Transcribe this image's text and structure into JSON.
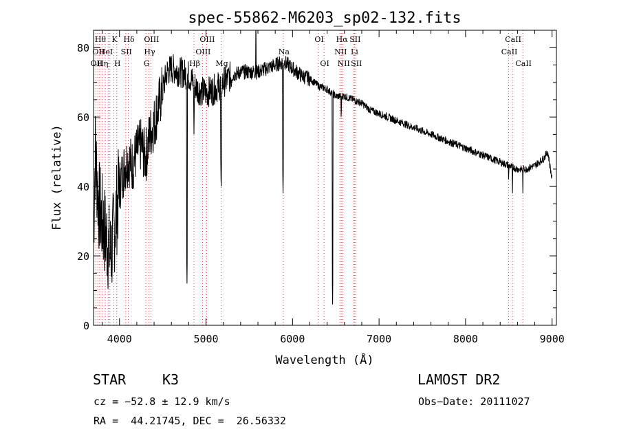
{
  "chart_data": {
    "type": "line",
    "title": "spec-55862-M6203_sp02-132.fits",
    "xlabel": "Wavelength (Å)",
    "ylabel": "Flux (relative)",
    "xlim": [
      3700,
      9050
    ],
    "ylim": [
      0,
      85
    ],
    "x_ticks": [
      4000,
      5000,
      6000,
      7000,
      8000,
      9000
    ],
    "y_ticks": [
      0,
      20,
      40,
      60,
      80
    ],
    "grid": false,
    "line_color": "#000000",
    "marker_color": "#d04040",
    "spectrum_anchors": [
      [
        3700,
        28
      ],
      [
        3720,
        50
      ],
      [
        3760,
        35
      ],
      [
        3800,
        30
      ],
      [
        3850,
        25
      ],
      [
        3900,
        20
      ],
      [
        3950,
        30
      ],
      [
        4000,
        40
      ],
      [
        4050,
        45
      ],
      [
        4100,
        48
      ],
      [
        4150,
        46
      ],
      [
        4200,
        50
      ],
      [
        4250,
        52
      ],
      [
        4300,
        48
      ],
      [
        4350,
        55
      ],
      [
        4400,
        58
      ],
      [
        4450,
        63
      ],
      [
        4500,
        68
      ],
      [
        4550,
        73
      ],
      [
        4600,
        74
      ],
      [
        4700,
        73
      ],
      [
        4800,
        72
      ],
      [
        4900,
        68
      ],
      [
        5000,
        67
      ],
      [
        5100,
        68
      ],
      [
        5200,
        70
      ],
      [
        5300,
        72
      ],
      [
        5400,
        73
      ],
      [
        5500,
        73
      ],
      [
        5600,
        73
      ],
      [
        5700,
        74
      ],
      [
        5800,
        75
      ],
      [
        5900,
        76
      ],
      [
        6000,
        74
      ],
      [
        6100,
        72
      ],
      [
        6200,
        71
      ],
      [
        6300,
        69
      ],
      [
        6400,
        68
      ],
      [
        6500,
        66
      ],
      [
        6600,
        66
      ],
      [
        6700,
        65
      ],
      [
        6800,
        64
      ],
      [
        6900,
        62
      ],
      [
        7000,
        61
      ],
      [
        7100,
        60
      ],
      [
        7200,
        59
      ],
      [
        7300,
        58
      ],
      [
        7400,
        57
      ],
      [
        7500,
        56
      ],
      [
        7600,
        55
      ],
      [
        7700,
        54
      ],
      [
        7800,
        53
      ],
      [
        7900,
        52
      ],
      [
        8000,
        51
      ],
      [
        8100,
        50
      ],
      [
        8200,
        49
      ],
      [
        8300,
        48
      ],
      [
        8400,
        47
      ],
      [
        8500,
        46
      ],
      [
        8600,
        45
      ],
      [
        8700,
        45
      ],
      [
        8800,
        46
      ],
      [
        8900,
        48
      ],
      [
        8950,
        50
      ],
      [
        9000,
        42
      ]
    ],
    "absorption_features": [
      [
        4780,
        12
      ],
      [
        4861,
        55
      ],
      [
        5175,
        38
      ],
      [
        5890,
        38
      ],
      [
        6463,
        6
      ],
      [
        6563,
        58
      ],
      [
        8498,
        40
      ],
      [
        8542,
        38
      ],
      [
        8662,
        38
      ]
    ],
    "lines": [
      {
        "wave": 3727,
        "label": "OII",
        "row": 2
      },
      {
        "wave": 3750,
        "label": "OII",
        "row": 1
      },
      {
        "wave": 3771,
        "label": "Hθ",
        "row": 0
      },
      {
        "wave": 3798,
        "label": "Hη",
        "row": 2
      },
      {
        "wave": 3835,
        "label": "HeI",
        "row": 1
      },
      {
        "wave": 3869,
        "label": "",
        "row": 1
      },
      {
        "wave": 3889,
        "label": "",
        "row": 1
      },
      {
        "wave": 3934,
        "label": "K",
        "row": 0
      },
      {
        "wave": 3968,
        "label": "H",
        "row": 2
      },
      {
        "wave": 4072,
        "label": "SII",
        "row": 1
      },
      {
        "wave": 4102,
        "label": "Hδ",
        "row": 0
      },
      {
        "wave": 4305,
        "label": "G",
        "row": 2
      },
      {
        "wave": 4340,
        "label": "Hγ",
        "row": 1
      },
      {
        "wave": 4363,
        "label": "OIII",
        "row": 0
      },
      {
        "wave": 4861,
        "label": "Hβ",
        "row": 2
      },
      {
        "wave": 4959,
        "label": "OIII",
        "row": 1
      },
      {
        "wave": 5007,
        "label": "OIII",
        "row": 0
      },
      {
        "wave": 5175,
        "label": "Mg",
        "row": 2
      },
      {
        "wave": 5893,
        "label": "Na",
        "row": 1
      },
      {
        "wave": 6300,
        "label": "OI",
        "row": 0
      },
      {
        "wave": 6364,
        "label": "OI",
        "row": 2
      },
      {
        "wave": 6548,
        "label": "NII",
        "row": 1
      },
      {
        "wave": 6563,
        "label": "Hα",
        "row": 0
      },
      {
        "wave": 6583,
        "label": "NII",
        "row": 2
      },
      {
        "wave": 6708,
        "label": "Li",
        "row": 1
      },
      {
        "wave": 6716,
        "label": "SII",
        "row": 0
      },
      {
        "wave": 6731,
        "label": "SII",
        "row": 2
      },
      {
        "wave": 8498,
        "label": "CaII",
        "row": 1
      },
      {
        "wave": 8542,
        "label": "CaII",
        "row": 0
      },
      {
        "wave": 8662,
        "label": "CaII",
        "row": 2
      }
    ]
  },
  "info": {
    "class_label": "STAR",
    "subclass": "K3",
    "survey": "LAMOST DR2",
    "cz": "cz = −52.8 ± 12.9 km/s",
    "obs_date": "Obs−Date: 20111027",
    "coords": "RA =  44.21745, DEC =  26.56332"
  }
}
